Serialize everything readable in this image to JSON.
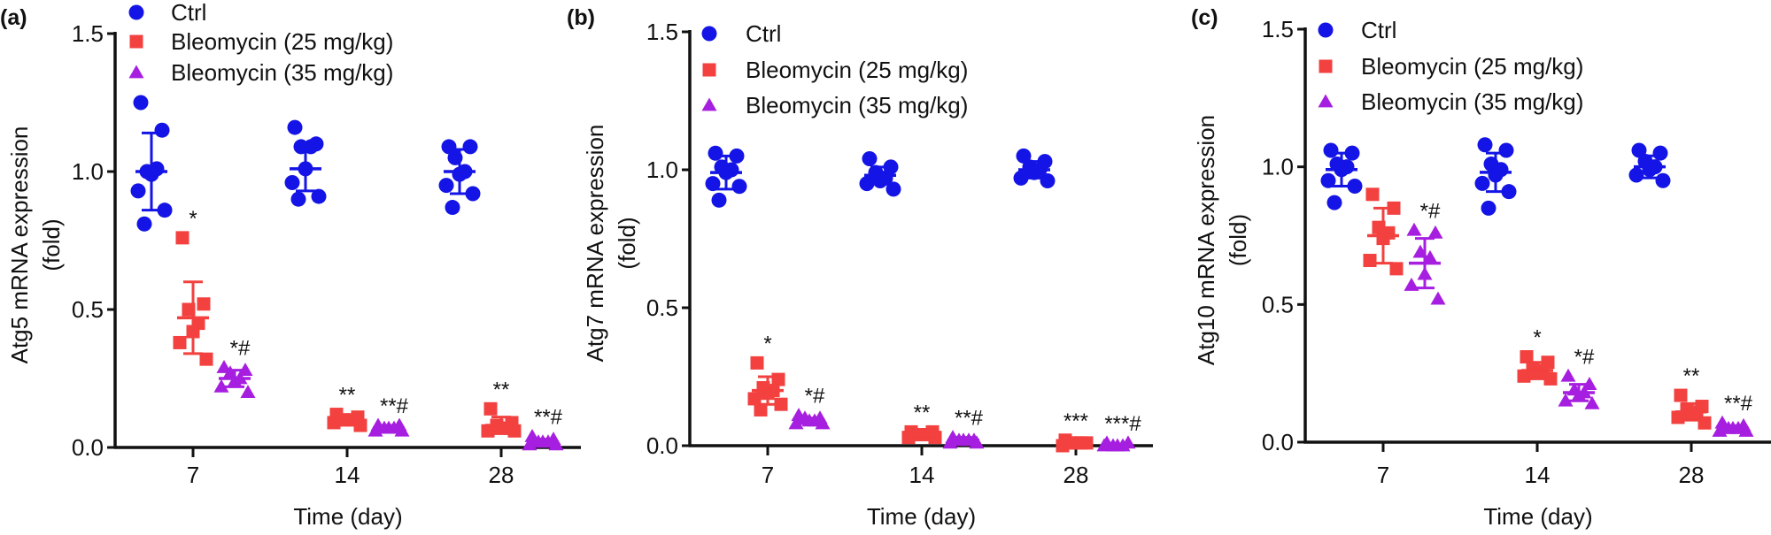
{
  "colors": {
    "ctrl": "#1414e6",
    "bleo25": "#f2413f",
    "bleo35": "#a61ee0",
    "axis": "#111111"
  },
  "legend": [
    {
      "label": "Ctrl",
      "marker": "circle",
      "color_key": "ctrl"
    },
    {
      "label": "Bleomycin (25 mg/kg)",
      "marker": "square",
      "color_key": "bleo25"
    },
    {
      "label": "Bleomycin (35 mg/kg)",
      "marker": "triangle",
      "color_key": "bleo35"
    }
  ],
  "chart_data": [
    {
      "panel_label": "(a)",
      "type": "scatter",
      "xlabel": "Time (day)",
      "ylabel": [
        "Atg5 mRNA expression",
        "(fold)"
      ],
      "categories": [
        "7",
        "14",
        "28"
      ],
      "ylim": [
        0,
        1.5
      ],
      "yticks": [
        "0.0",
        "0.5",
        "1.0",
        "1.5"
      ],
      "grid": false,
      "legend_placement": "top",
      "series": [
        {
          "name": "Ctrl",
          "groups": [
            {
              "values": [
                1.25,
                1.15,
                1.0,
                1.01,
                0.99,
                0.93,
                0.86,
                0.81
              ],
              "mean": 1.0,
              "sd": 0.14,
              "sig": ""
            },
            {
              "values": [
                1.16,
                1.1,
                1.09,
                1.09,
                1.01,
                0.96,
                0.91,
                0.9
              ],
              "mean": 1.01,
              "sd": 0.08,
              "sig": ""
            },
            {
              "values": [
                1.09,
                1.09,
                1.05,
                1.0,
                0.99,
                0.95,
                0.92,
                0.87
              ],
              "mean": 1.0,
              "sd": 0.08,
              "sig": ""
            }
          ]
        },
        {
          "name": "Bleomycin (25 mg/kg)",
          "groups": [
            {
              "values": [
                0.76,
                0.52,
                0.5,
                0.45,
                0.42,
                0.38,
                0.32
              ],
              "mean": 0.47,
              "sd": 0.13,
              "sig": "*"
            },
            {
              "values": [
                0.12,
                0.11,
                0.1,
                0.1,
                0.1,
                0.09,
                0.08
              ],
              "mean": 0.1,
              "sd": 0.01,
              "sig": "**"
            },
            {
              "values": [
                0.14,
                0.09,
                0.08,
                0.07,
                0.07,
                0.06,
                0.06
              ],
              "mean": 0.08,
              "sd": 0.03,
              "sig": "**"
            }
          ]
        },
        {
          "name": "Bleomycin (35 mg/kg)",
          "groups": [
            {
              "values": [
                0.29,
                0.28,
                0.27,
                0.25,
                0.24,
                0.22,
                0.2
              ],
              "mean": 0.25,
              "sd": 0.03,
              "sig": "*#"
            },
            {
              "values": [
                0.08,
                0.08,
                0.07,
                0.07,
                0.07,
                0.06,
                0.06
              ],
              "mean": 0.07,
              "sd": 0.01,
              "sig": "**#"
            },
            {
              "values": [
                0.04,
                0.03,
                0.02,
                0.02,
                0.02,
                0.01,
                0.01
              ],
              "mean": 0.02,
              "sd": 0.01,
              "sig": "**#"
            }
          ]
        }
      ]
    },
    {
      "panel_label": "(b)",
      "type": "scatter",
      "xlabel": "Time (day)",
      "ylabel": [
        "Atg7 mRNA expression",
        "(fold)"
      ],
      "categories": [
        "7",
        "14",
        "28"
      ],
      "ylim": [
        0,
        1.5
      ],
      "yticks": [
        "0.0",
        "0.5",
        "1.0",
        "1.5"
      ],
      "grid": false,
      "legend_placement": "top",
      "series": [
        {
          "name": "Ctrl",
          "groups": [
            {
              "values": [
                1.06,
                1.05,
                1.01,
                1.0,
                0.99,
                0.95,
                0.94,
                0.89
              ],
              "mean": 0.99,
              "sd": 0.06,
              "sig": ""
            },
            {
              "values": [
                1.04,
                1.01,
                0.99,
                0.97,
                0.96,
                0.95,
                0.93
              ],
              "mean": 0.98,
              "sd": 0.03,
              "sig": ""
            },
            {
              "values": [
                1.05,
                1.03,
                1.01,
                1.0,
                0.99,
                0.97,
                0.96
              ],
              "mean": 1.0,
              "sd": 0.03,
              "sig": ""
            }
          ]
        },
        {
          "name": "Bleomycin (25 mg/kg)",
          "groups": [
            {
              "values": [
                0.3,
                0.24,
                0.21,
                0.2,
                0.19,
                0.17,
                0.15,
                0.13
              ],
              "mean": 0.2,
              "sd": 0.05,
              "sig": "*"
            },
            {
              "values": [
                0.05,
                0.05,
                0.04,
                0.04,
                0.04,
                0.03,
                0.03
              ],
              "mean": 0.04,
              "sd": 0.01,
              "sig": "**"
            },
            {
              "values": [
                0.02,
                0.01,
                0.01,
                0.01,
                0.01,
                0.0
              ],
              "mean": 0.01,
              "sd": 0.01,
              "sig": "***"
            }
          ]
        },
        {
          "name": "Bleomycin (35 mg/kg)",
          "groups": [
            {
              "values": [
                0.11,
                0.1,
                0.1,
                0.09,
                0.09,
                0.08,
                0.08
              ],
              "mean": 0.09,
              "sd": 0.01,
              "sig": "*#"
            },
            {
              "values": [
                0.03,
                0.02,
                0.02,
                0.02,
                0.02,
                0.01,
                0.01
              ],
              "mean": 0.02,
              "sd": 0.01,
              "sig": "**#"
            },
            {
              "values": [
                0.01,
                0.01,
                0.0,
                0.0,
                0.0,
                0.0
              ],
              "mean": 0.0,
              "sd": 0.005,
              "sig": "***#"
            }
          ]
        }
      ]
    },
    {
      "panel_label": "(c)",
      "type": "scatter",
      "xlabel": "Time (day)",
      "ylabel": [
        "Atg10 mRNA expression",
        "(fold)"
      ],
      "categories": [
        "7",
        "14",
        "28"
      ],
      "ylim": [
        0,
        1.5
      ],
      "yticks": [
        "0.0",
        "0.5",
        "1.0",
        "1.5"
      ],
      "grid": false,
      "legend_placement": "top",
      "series": [
        {
          "name": "Ctrl",
          "groups": [
            {
              "values": [
                1.06,
                1.05,
                1.01,
                1.0,
                0.99,
                0.95,
                0.93,
                0.87
              ],
              "mean": 0.99,
              "sd": 0.06,
              "sig": ""
            },
            {
              "values": [
                1.08,
                1.06,
                1.01,
                0.99,
                0.97,
                0.94,
                0.91,
                0.85
              ],
              "mean": 0.98,
              "sd": 0.07,
              "sig": ""
            },
            {
              "values": [
                1.06,
                1.05,
                1.02,
                1.0,
                0.99,
                0.97,
                0.95
              ],
              "mean": 1.0,
              "sd": 0.04,
              "sig": ""
            }
          ]
        },
        {
          "name": "Bleomycin (25 mg/kg)",
          "groups": [
            {
              "values": [
                0.9,
                0.85,
                0.78,
                0.76,
                0.74,
                0.66,
                0.63
              ],
              "mean": 0.75,
              "sd": 0.1,
              "sig": ""
            },
            {
              "values": [
                0.31,
                0.29,
                0.27,
                0.26,
                0.25,
                0.24,
                0.23
              ],
              "mean": 0.26,
              "sd": 0.03,
              "sig": "*"
            },
            {
              "values": [
                0.17,
                0.13,
                0.12,
                0.11,
                0.1,
                0.09,
                0.07
              ],
              "mean": 0.11,
              "sd": 0.03,
              "sig": "**"
            }
          ]
        },
        {
          "name": "Bleomycin (35 mg/kg)",
          "groups": [
            {
              "values": [
                0.77,
                0.76,
                0.69,
                0.67,
                0.61,
                0.57,
                0.52
              ],
              "mean": 0.65,
              "sd": 0.09,
              "sig": "*#"
            },
            {
              "values": [
                0.24,
                0.21,
                0.19,
                0.18,
                0.17,
                0.15,
                0.14
              ],
              "mean": 0.18,
              "sd": 0.03,
              "sig": "*#"
            },
            {
              "values": [
                0.07,
                0.06,
                0.05,
                0.05,
                0.05,
                0.04,
                0.04
              ],
              "mean": 0.05,
              "sd": 0.01,
              "sig": "**#"
            }
          ]
        }
      ]
    }
  ]
}
